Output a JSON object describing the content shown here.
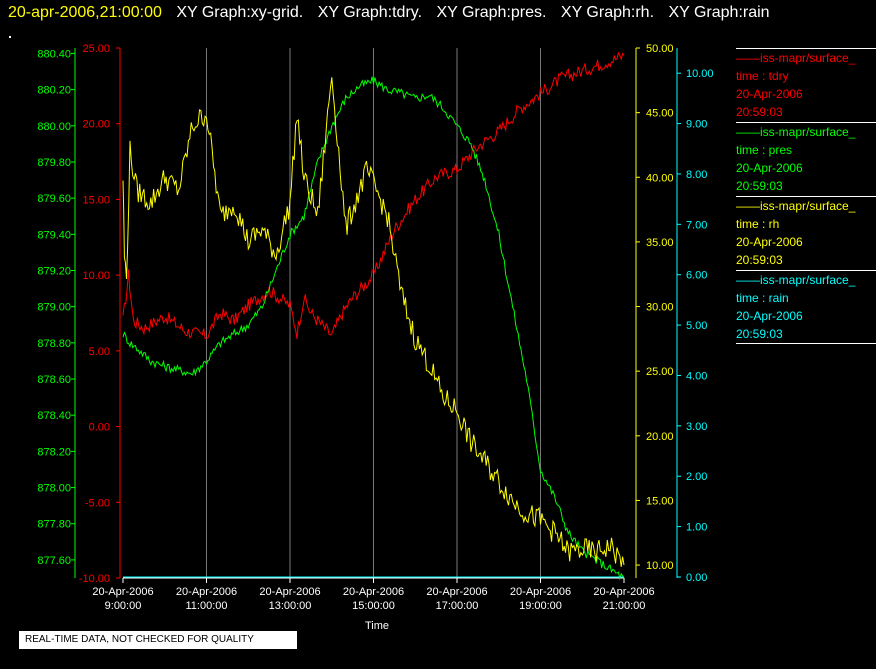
{
  "header": {
    "timestamp": "20-apr-2006,21:00:00",
    "graphs": [
      "XY Graph:xy-grid.",
      "XY Graph:tdry.",
      "XY Graph:pres.",
      "XY Graph:rh.",
      "XY Graph:rain"
    ]
  },
  "legend": [
    {
      "name": "——iss-mapr/surface_",
      "var": "time : tdry",
      "date": "20-Apr-2006",
      "time": "20:59:03",
      "color": "#ff0000"
    },
    {
      "name": "——iss-mapr/surface_",
      "var": "time : pres",
      "date": "20-Apr-2006",
      "time": "20:59:03",
      "color": "#00ff00"
    },
    {
      "name": "——iss-mapr/surface_",
      "var": "time : rh",
      "date": "20-Apr-2006",
      "time": "20:59:03",
      "color": "#ffff00"
    },
    {
      "name": "——iss-mapr/surface_",
      "var": "time : rain",
      "date": "20-Apr-2006",
      "time": "20:59:03",
      "color": "#00ffff"
    }
  ],
  "footer": "REAL-TIME DATA, NOT CHECKED FOR QUALITY",
  "chart_data": {
    "type": "line",
    "xlabel": "Time",
    "x_ticks": [
      {
        "date": "20-Apr-2006",
        "time": "9:00:00"
      },
      {
        "date": "20-Apr-2006",
        "time": "11:00:00"
      },
      {
        "date": "20-Apr-2006",
        "time": "13:00:00"
      },
      {
        "date": "20-Apr-2006",
        "time": "15:00:00"
      },
      {
        "date": "20-Apr-2006",
        "time": "17:00:00"
      },
      {
        "date": "20-Apr-2006",
        "time": "19:00:00"
      },
      {
        "date": "20-Apr-2006",
        "time": "21:00:00"
      }
    ],
    "xlim": [
      "2006-04-20 09:00",
      "2006-04-20 21:00"
    ],
    "grid": "vertical",
    "axes": {
      "pres": {
        "color": "#00ff00",
        "ylim": [
          877.5,
          880.43
        ],
        "ticks": [
          "877.60",
          "877.80",
          "878.00",
          "878.20",
          "878.40",
          "878.60",
          "878.80",
          "879.00",
          "879.20",
          "879.40",
          "879.60",
          "879.80",
          "880.00",
          "880.20",
          "880.40"
        ]
      },
      "tdry": {
        "color": "#ff0000",
        "ylim": [
          -10,
          25
        ],
        "ticks": [
          "-10.00",
          "-5.00",
          "0.00",
          "5.00",
          "10.00",
          "15.00",
          "20.00",
          "25.00"
        ]
      },
      "rh": {
        "color": "#ffff00",
        "ylim": [
          9,
          50
        ],
        "ticks": [
          "10.00",
          "15.00",
          "20.00",
          "25.00",
          "30.00",
          "35.00",
          "40.00",
          "45.00",
          "50.00"
        ]
      },
      "rain": {
        "color": "#00ffff",
        "ylim": [
          -0.02,
          10.5
        ],
        "ticks": [
          "0.00",
          "1.00",
          "2.00",
          "3.00",
          "4.00",
          "5.00",
          "6.00",
          "7.00",
          "8.00",
          "9.00",
          "10.00"
        ]
      }
    },
    "series": [
      {
        "key": "tdry",
        "color": "#ff0000",
        "x": [
          "09:00",
          "09:08",
          "09:15",
          "09:30",
          "10:00",
          "10:30",
          "11:00",
          "11:20",
          "11:40",
          "12:00",
          "12:30",
          "13:00",
          "13:10",
          "13:20",
          "13:30",
          "14:00",
          "14:15",
          "14:30",
          "15:00",
          "15:30",
          "16:00",
          "16:30",
          "17:00",
          "17:30",
          "18:00",
          "18:30",
          "19:00",
          "19:30",
          "20:00",
          "20:30",
          "21:00"
        ],
        "y": [
          7.0,
          10.0,
          7.0,
          6.5,
          7.3,
          6.3,
          6.0,
          7.5,
          7.0,
          8.0,
          9.0,
          8.0,
          6.2,
          8.5,
          7.5,
          6.0,
          7.5,
          8.5,
          10.0,
          13.0,
          15.0,
          16.5,
          17.0,
          18.5,
          19.5,
          21.0,
          22.0,
          23.0,
          23.5,
          24.0,
          24.5
        ]
      },
      {
        "key": "pres",
        "color": "#00ff00",
        "x": [
          "09:00",
          "09:10",
          "09:20",
          "09:40",
          "10:00",
          "10:20",
          "10:40",
          "11:00",
          "11:20",
          "11:40",
          "12:00",
          "12:20",
          "12:40",
          "13:00",
          "13:20",
          "13:40",
          "14:00",
          "14:20",
          "14:40",
          "15:00",
          "15:20",
          "15:40",
          "16:00",
          "16:20",
          "16:40",
          "17:00",
          "17:20",
          "17:40",
          "18:00",
          "18:20",
          "18:40",
          "19:00",
          "19:20",
          "19:40",
          "20:00",
          "20:20",
          "20:40",
          "21:00"
        ],
        "y": [
          878.85,
          878.8,
          878.77,
          878.7,
          878.67,
          878.65,
          878.63,
          878.7,
          878.8,
          878.85,
          878.9,
          879.0,
          879.2,
          879.4,
          879.5,
          879.8,
          880.0,
          880.15,
          880.22,
          880.25,
          880.2,
          880.18,
          880.15,
          880.17,
          880.1,
          880.0,
          879.9,
          879.7,
          879.4,
          879.0,
          878.6,
          878.1,
          877.95,
          877.75,
          877.65,
          877.6,
          877.55,
          877.5
        ]
      },
      {
        "key": "rh",
        "color": "#ffff00",
        "x": [
          "09:00",
          "09:02",
          "09:05",
          "09:10",
          "09:20",
          "09:40",
          "10:00",
          "10:20",
          "10:40",
          "11:00",
          "11:20",
          "11:40",
          "12:00",
          "12:20",
          "12:40",
          "13:00",
          "13:10",
          "13:20",
          "13:40",
          "14:00",
          "14:20",
          "14:40",
          "14:50",
          "15:00",
          "15:20",
          "15:40",
          "16:00",
          "16:20",
          "16:40",
          "17:00",
          "17:20",
          "17:40",
          "18:00",
          "18:20",
          "18:40",
          "19:00",
          "19:20",
          "19:40",
          "20:00",
          "20:20",
          "20:40",
          "21:00"
        ],
        "y": [
          40.0,
          34.0,
          32.0,
          42.0,
          39.0,
          38.0,
          40.0,
          39.0,
          44.0,
          45.0,
          37.0,
          38.0,
          35.0,
          36.0,
          34.0,
          38.0,
          45.0,
          40.0,
          37.0,
          48.0,
          36.0,
          39.0,
          40.5,
          39.5,
          37.0,
          31.0,
          27.5,
          25.5,
          23.0,
          22.0,
          19.5,
          18.0,
          16.5,
          15.0,
          14.0,
          13.5,
          12.5,
          11.0,
          11.2,
          11.0,
          11.5,
          10.0
        ]
      },
      {
        "key": "rain",
        "color": "#00ffff",
        "x": [
          "09:00",
          "21:00"
        ],
        "y": [
          0.0,
          0.0
        ]
      }
    ]
  }
}
